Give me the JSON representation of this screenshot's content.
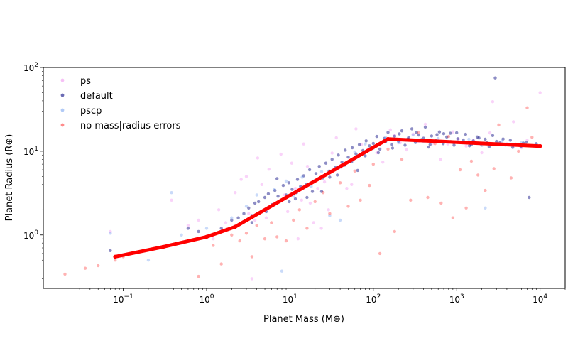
{
  "chart_data": {
    "type": "scatter",
    "title": "",
    "xlabel": "Planet Mass (M⊕)",
    "ylabel": "Planet Radius (R⊕)",
    "xscale": "log",
    "yscale": "log",
    "xlim": [
      0.011,
      20000
    ],
    "ylim": [
      0.23,
      100
    ],
    "grid": false,
    "legend_position": "upper-left",
    "x_ticks": [
      {
        "value": 0.1,
        "base": "10",
        "exp": "−1"
      },
      {
        "value": 1,
        "base": "10",
        "exp": "0"
      },
      {
        "value": 10,
        "base": "10",
        "exp": "1"
      },
      {
        "value": 100,
        "base": "10",
        "exp": "2"
      },
      {
        "value": 1000,
        "base": "10",
        "exp": "3"
      },
      {
        "value": 10000,
        "base": "10",
        "exp": "4"
      }
    ],
    "y_ticks": [
      {
        "value": 1,
        "base": "10",
        "exp": "0"
      },
      {
        "value": 10,
        "base": "10",
        "exp": "1"
      },
      {
        "value": 100,
        "base": "10",
        "exp": "2"
      }
    ],
    "series": [
      {
        "name": "ps",
        "color": "#ee82ee",
        "opacity": 0.35,
        "points": [
          [
            0.07,
            1.1
          ],
          [
            0.38,
            2.6
          ],
          [
            0.5,
            0.8
          ],
          [
            0.6,
            1.3
          ],
          [
            0.8,
            1.5
          ],
          [
            1.2,
            0.9
          ],
          [
            1.4,
            2.0
          ],
          [
            1.7,
            1.4
          ],
          [
            2.2,
            3.2
          ],
          [
            2.6,
            4.6
          ],
          [
            3.0,
            5.0
          ],
          [
            3.2,
            1.8
          ],
          [
            3.5,
            0.3
          ],
          [
            3.8,
            1.5
          ],
          [
            4.1,
            8.3
          ],
          [
            4.6,
            4.0
          ],
          [
            5.2,
            1.6
          ],
          [
            5.6,
            6.1
          ],
          [
            6.4,
            2.3
          ],
          [
            7.0,
            2.4
          ],
          [
            7.8,
            9.2
          ],
          [
            8.6,
            3.0
          ],
          [
            9.4,
            1.9
          ],
          [
            10.5,
            7.2
          ],
          [
            11.6,
            3.6
          ],
          [
            12.5,
            0.9
          ],
          [
            13.8,
            2.6
          ],
          [
            14.6,
            12.2
          ],
          [
            16.2,
            6.6
          ],
          [
            17.5,
            2.4
          ],
          [
            19.2,
            1.4
          ],
          [
            21.5,
            3.6
          ],
          [
            23.8,
            1.2
          ],
          [
            26.0,
            4.3
          ],
          [
            29.0,
            2.0
          ],
          [
            32.0,
            9.5
          ],
          [
            36.0,
            14.5
          ],
          [
            41.0,
            6.4
          ],
          [
            48.0,
            3.6
          ],
          [
            55.0,
            4.0
          ],
          [
            62.0,
            18.5
          ],
          [
            72.0,
            12.0
          ],
          [
            85.0,
            10.6
          ],
          [
            110.0,
            9.6
          ],
          [
            130.0,
            7.4
          ],
          [
            160.0,
            18.0
          ],
          [
            180.0,
            15.5
          ],
          [
            210.0,
            12.6
          ],
          [
            250.0,
            10.4
          ],
          [
            300.0,
            16.0
          ],
          [
            350.0,
            13.0
          ],
          [
            420.0,
            21.0
          ],
          [
            520.0,
            12.5
          ],
          [
            640.0,
            8.0
          ],
          [
            780.0,
            12.2
          ],
          [
            900.0,
            17.0
          ],
          [
            1050.0,
            14.0
          ],
          [
            1300.0,
            11.5
          ],
          [
            1600.0,
            13.4
          ],
          [
            2000.0,
            9.6
          ],
          [
            2500.0,
            16.5
          ],
          [
            2700.0,
            39.0
          ],
          [
            4000.0,
            12.3
          ],
          [
            4800.0,
            22.5
          ],
          [
            6000.0,
            11.0
          ],
          [
            7000.0,
            13.5
          ],
          [
            10000.0,
            50.0
          ]
        ]
      },
      {
        "name": "default",
        "color": "#1c1c8c",
        "opacity": 0.5,
        "points": [
          [
            0.07,
            0.65
          ],
          [
            0.6,
            1.2
          ],
          [
            0.8,
            1.1
          ],
          [
            1.5,
            1.2
          ],
          [
            2.0,
            1.5
          ],
          [
            2.4,
            1.6
          ],
          [
            2.8,
            1.8
          ],
          [
            3.2,
            2.1
          ],
          [
            3.5,
            1.7
          ],
          [
            3.8,
            2.4
          ],
          [
            4.2,
            2.5
          ],
          [
            4.6,
            1.9
          ],
          [
            5.0,
            2.8
          ],
          [
            5.5,
            3.1
          ],
          [
            6.1,
            2.3
          ],
          [
            6.6,
            3.4
          ],
          [
            7.2,
            2.9
          ],
          [
            7.8,
            2.6
          ],
          [
            8.3,
            3.9
          ],
          [
            9.0,
            3.0
          ],
          [
            9.7,
            4.2
          ],
          [
            10.6,
            3.5
          ],
          [
            11.6,
            2.7
          ],
          [
            12.3,
            4.6
          ],
          [
            13.4,
            3.8
          ],
          [
            14.6,
            5.1
          ],
          [
            15.8,
            4.0
          ],
          [
            17.2,
            6.0
          ],
          [
            18.6,
            3.3
          ],
          [
            20.5,
            5.4
          ],
          [
            22.5,
            6.6
          ],
          [
            24.8,
            4.8
          ],
          [
            27.0,
            7.2
          ],
          [
            29.5,
            5.8
          ],
          [
            32.0,
            8.0
          ],
          [
            35.0,
            6.4
          ],
          [
            38.0,
            9.0
          ],
          [
            42.0,
            7.4
          ],
          [
            46.0,
            10.3
          ],
          [
            50.0,
            8.5
          ],
          [
            56.0,
            11.0
          ],
          [
            62.0,
            9.3
          ],
          [
            68.0,
            12.0
          ],
          [
            75.0,
            10.2
          ],
          [
            82.0,
            13.3
          ],
          [
            90.0,
            11.6
          ],
          [
            100.0,
            12.4
          ],
          [
            110.0,
            15.0
          ],
          [
            120.0,
            10.6
          ],
          [
            135.0,
            14.2
          ],
          [
            150.0,
            16.8
          ],
          [
            165.0,
            12.0
          ],
          [
            180.0,
            15.1
          ],
          [
            200.0,
            13.2
          ],
          [
            220.0,
            17.5
          ],
          [
            240.0,
            11.8
          ],
          [
            265.0,
            14.6
          ],
          [
            290.0,
            18.5
          ],
          [
            320.0,
            12.7
          ],
          [
            350.0,
            15.6
          ],
          [
            380.0,
            13.8
          ],
          [
            420.0,
            19.4
          ],
          [
            460.0,
            11.2
          ],
          [
            500.0,
            15.2
          ],
          [
            560.0,
            13.5
          ],
          [
            620.0,
            17.0
          ],
          [
            690.0,
            12.3
          ],
          [
            760.0,
            14.8
          ],
          [
            840.0,
            16.4
          ],
          [
            930.0,
            11.8
          ],
          [
            1030.0,
            14.1
          ],
          [
            1150.0,
            12.7
          ],
          [
            1280.0,
            15.9
          ],
          [
            1420.0,
            11.6
          ],
          [
            1580.0,
            13.3
          ],
          [
            1760.0,
            14.8
          ],
          [
            1960.0,
            12.2
          ],
          [
            2200.0,
            13.9
          ],
          [
            2450.0,
            11.3
          ],
          [
            2700.0,
            15.4
          ],
          [
            2900.0,
            75.0
          ],
          [
            3300.0,
            12.6
          ],
          [
            3800.0,
            11.9
          ],
          [
            4400.0,
            13.5
          ],
          [
            5100.0,
            12.1
          ],
          [
            5900.0,
            11.4
          ],
          [
            6800.0,
            12.8
          ],
          [
            7400.0,
            2.8
          ],
          [
            8200.0,
            11.6
          ],
          [
            9000.0,
            12.3
          ],
          [
            3.5,
            1.4
          ],
          [
            5.2,
            1.9
          ],
          [
            7.0,
            4.7
          ],
          [
            9.8,
            2.5
          ],
          [
            12.0,
            3.2
          ],
          [
            16.0,
            2.8
          ],
          [
            19.5,
            4.4
          ],
          [
            24.0,
            3.3
          ],
          [
            30.0,
            4.9
          ],
          [
            37.0,
            5.2
          ],
          [
            45.0,
            6.8
          ],
          [
            55.0,
            7.5
          ],
          [
            65.0,
            5.9
          ],
          [
            80.0,
            8.8
          ],
          [
            95.0,
            10.7
          ],
          [
            115.0,
            9.6
          ],
          [
            140.0,
            12.9
          ],
          [
            170.0,
            10.9
          ],
          [
            205.0,
            16.1
          ],
          [
            260.0,
            14.0
          ],
          [
            330.0,
            16.7
          ],
          [
            400.0,
            14.3
          ],
          [
            480.0,
            12.0
          ],
          [
            580.0,
            15.8
          ],
          [
            700.0,
            16.2
          ],
          [
            850.0,
            13.0
          ],
          [
            1000.0,
            16.6
          ],
          [
            1200.0,
            13.6
          ],
          [
            1500.0,
            12.0
          ],
          [
            1850.0,
            14.4
          ],
          [
            2300.0,
            12.6
          ],
          [
            3000.0,
            13.1
          ],
          [
            3600.0,
            14.0
          ],
          [
            4700.0,
            11.1
          ],
          [
            6300.0,
            12.5
          ]
        ]
      },
      {
        "name": "pscp",
        "color": "#6495ed",
        "opacity": 0.35,
        "points": [
          [
            0.07,
            1.05
          ],
          [
            0.2,
            0.5
          ],
          [
            0.38,
            3.2
          ],
          [
            0.5,
            1.0
          ],
          [
            1.0,
            1.2
          ],
          [
            2.0,
            1.6
          ],
          [
            3.0,
            2.2
          ],
          [
            4.0,
            3.0
          ],
          [
            5.0,
            2.0
          ],
          [
            6.5,
            3.5
          ],
          [
            8.0,
            0.37
          ],
          [
            9.0,
            4.4
          ],
          [
            11.0,
            2.9
          ],
          [
            14.0,
            4.9
          ],
          [
            18.0,
            3.8
          ],
          [
            24.0,
            5.7
          ],
          [
            30.0,
            1.7
          ],
          [
            40.0,
            1.5
          ],
          [
            45.0,
            7.0
          ],
          [
            60.0,
            9.8
          ],
          [
            80.0,
            12.2
          ],
          [
            100.0,
            10.8
          ],
          [
            140.0,
            14.6
          ],
          [
            200.0,
            12.6
          ],
          [
            300.0,
            15.7
          ],
          [
            400.0,
            13.1
          ],
          [
            600.0,
            14.2
          ],
          [
            900.0,
            12.6
          ],
          [
            1400.0,
            13.9
          ],
          [
            2000.0,
            11.7
          ],
          [
            2200.0,
            2.1
          ],
          [
            3500.0,
            13.2
          ],
          [
            6000.0,
            12.7
          ],
          [
            9000.0,
            11.9
          ]
        ]
      },
      {
        "name": "no mass|radius errors",
        "color": "#ff0000",
        "opacity": 0.3,
        "points": [
          [
            0.02,
            0.34
          ],
          [
            0.035,
            0.4
          ],
          [
            0.05,
            0.43
          ],
          [
            0.08,
            0.5
          ],
          [
            0.1,
            0.55
          ],
          [
            0.8,
            0.32
          ],
          [
            1.2,
            0.75
          ],
          [
            1.5,
            0.45
          ],
          [
            2.0,
            1.0
          ],
          [
            2.5,
            0.85
          ],
          [
            3.0,
            1.05
          ],
          [
            3.5,
            0.55
          ],
          [
            4.0,
            1.3
          ],
          [
            5.0,
            0.9
          ],
          [
            6.0,
            1.4
          ],
          [
            7.0,
            0.95
          ],
          [
            9.0,
            0.85
          ],
          [
            11.0,
            1.5
          ],
          [
            13.0,
            2.0
          ],
          [
            16.0,
            1.2
          ],
          [
            20.0,
            2.5
          ],
          [
            25.0,
            3.2
          ],
          [
            30.0,
            1.8
          ],
          [
            40.0,
            4.2
          ],
          [
            50.0,
            2.2
          ],
          [
            60.0,
            5.8
          ],
          [
            70.0,
            2.6
          ],
          [
            90.0,
            3.9
          ],
          [
            100.0,
            7.0
          ],
          [
            120.0,
            0.6
          ],
          [
            150.0,
            10.6
          ],
          [
            180.0,
            1.1
          ],
          [
            220.0,
            8.0
          ],
          [
            280.0,
            2.6
          ],
          [
            350.0,
            16.6
          ],
          [
            450.0,
            2.8
          ],
          [
            550.0,
            12.3
          ],
          [
            650.0,
            2.4
          ],
          [
            800.0,
            15.0
          ],
          [
            900.0,
            1.6
          ],
          [
            1100.0,
            6.0
          ],
          [
            1300.0,
            2.1
          ],
          [
            1500.0,
            7.6
          ],
          [
            1800.0,
            5.2
          ],
          [
            2200.0,
            3.4
          ],
          [
            2800.0,
            6.2
          ],
          [
            3200.0,
            20.6
          ],
          [
            4500.0,
            4.8
          ],
          [
            5500.0,
            10.0
          ],
          [
            7000.0,
            33.0
          ],
          [
            8000.0,
            14.7
          ]
        ]
      }
    ],
    "fit_line": {
      "color": "#ff0000",
      "points": [
        [
          0.08,
          0.55
        ],
        [
          0.3,
          0.72
        ],
        [
          1.0,
          0.95
        ],
        [
          2.2,
          1.25
        ],
        [
          150.0,
          14.0
        ],
        [
          10000.0,
          11.5
        ]
      ]
    }
  }
}
